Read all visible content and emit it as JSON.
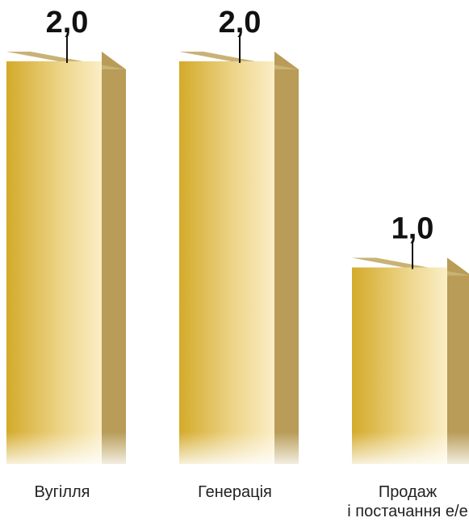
{
  "chart_data": {
    "type": "bar",
    "categories": [
      "Вугілля",
      "Генерація",
      "Продаж\nі постачання е/е"
    ],
    "values": [
      2.0,
      2.0,
      1.0
    ],
    "value_labels": [
      "2,0",
      "2,0",
      "1,0"
    ],
    "title": "",
    "xlabel": "",
    "ylabel": "",
    "ylim": [
      0,
      2.0
    ],
    "grid": false,
    "legend": "none",
    "colors": {
      "bar_front_left": "#d4aa2a",
      "bar_front_right": "#fbeec6",
      "bar_top": "#c9b277",
      "bar_side": "#b89c57",
      "tick_line": "#111111"
    }
  }
}
